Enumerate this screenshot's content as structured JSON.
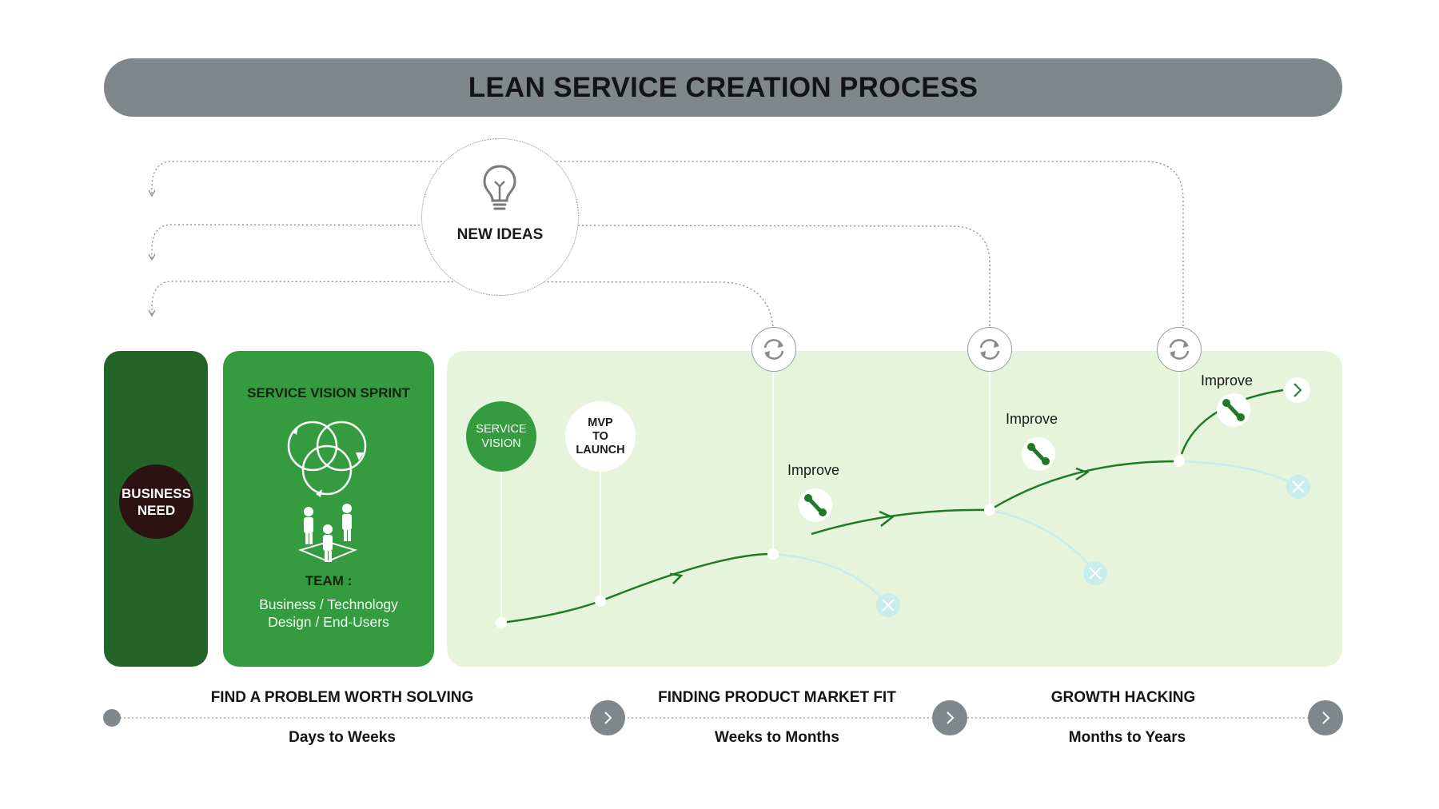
{
  "header": {
    "title": "LEAN SERVICE CREATION PROCESS"
  },
  "new_ideas": {
    "label": "NEW IDEAS",
    "icon": "lightbulb-icon"
  },
  "business_need": {
    "line1": "BUSINESS",
    "line2": "NEED"
  },
  "sprint": {
    "title": "SERVICE VISION SPRINT",
    "team_label": "TEAM :",
    "team_line1": "Business / Technology",
    "team_line2": "Design / End-Users"
  },
  "journey": {
    "service_vision": {
      "line1": "SERVICE",
      "line2": "VISION"
    },
    "mvp": {
      "line1": "MVP",
      "line2": "TO",
      "line3": "LAUNCH"
    },
    "improve_labels": [
      "Improve",
      "Improve",
      "Improve"
    ]
  },
  "stages": [
    {
      "title": "FIND A PROBLEM WORTH SOLVING",
      "duration": "Days to Weeks"
    },
    {
      "title": "FINDING PRODUCT MARKET FIT",
      "duration": "Weeks to Months"
    },
    {
      "title": "GROWTH HACKING",
      "duration": "Months to Years"
    }
  ],
  "colors": {
    "header_bg": "#7f878b",
    "dark_green": "#256428",
    "mid_green": "#349c3e",
    "light_green": "#e7f4dc",
    "path_green": "#1f7a28",
    "fail_blue": "#c9ecec",
    "business_dark": "#2c1210"
  }
}
